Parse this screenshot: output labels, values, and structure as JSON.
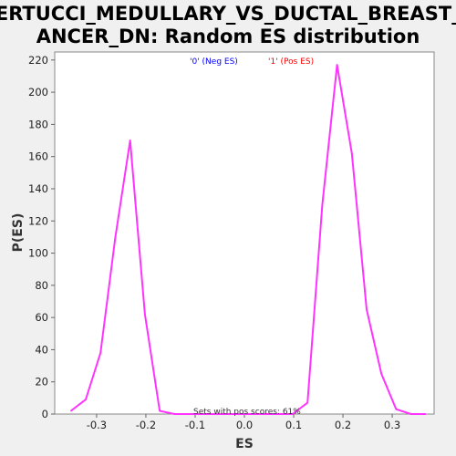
{
  "chart_data": {
    "type": "line",
    "title_lines": [
      "BERTUCCI_MEDULLARY_VS_DUCTAL_BREAST_C",
      "ANCER_DN: Random ES distribution"
    ],
    "xlabel": "ES",
    "ylabel": "P(ES)",
    "xlim": [
      -0.385,
      0.385
    ],
    "ylim": [
      0,
      225
    ],
    "x_ticks": [
      -0.3,
      -0.2,
      -0.1,
      0.0,
      0.1,
      0.2,
      0.3
    ],
    "x_tick_labels": [
      "-0.3",
      "-0.2",
      "-0.1",
      "0.0",
      "0.1",
      "0.2",
      "0.3"
    ],
    "y_ticks": [
      0,
      20,
      40,
      60,
      80,
      100,
      120,
      140,
      160,
      180,
      200,
      220
    ],
    "y_tick_labels": [
      "0",
      "20",
      "40",
      "60",
      "80",
      "100",
      "120",
      "140",
      "160",
      "180",
      "200",
      "220"
    ],
    "grid": false,
    "legend": [
      {
        "label": "'0' (Neg ES)",
        "color": "#0000ff"
      },
      {
        "label": "'1' (Pos ES)",
        "color": "#ff0000"
      }
    ],
    "annotation": "Sets with pos scores: 61%",
    "series": [
      {
        "color": "#ff33ff",
        "x": [
          -0.352,
          -0.302,
          -0.272,
          -0.242,
          -0.212,
          -0.182,
          -0.152,
          -0.122,
          -0.092,
          -0.062,
          -0.032,
          -0.002,
          0.028,
          0.058,
          0.088,
          0.118,
          0.148,
          0.178,
          0.208,
          0.238,
          0.268,
          0.298,
          0.328,
          0.358
        ],
        "y": [
          2,
          9,
          38,
          110,
          170,
          62,
          2,
          0,
          0,
          0,
          0,
          0,
          0,
          0,
          0,
          0,
          7,
          130,
          217,
          162,
          65,
          25,
          3,
          0
        ],
        "x_fixed": [
          -0.352,
          -0.322,
          -0.292,
          -0.262,
          -0.232,
          -0.202,
          -0.172,
          -0.142,
          -0.112,
          -0.082,
          -0.052,
          -0.022,
          0.008,
          0.038,
          0.068,
          0.098,
          0.128,
          0.158,
          0.188,
          0.218,
          0.248,
          0.278,
          0.308,
          0.338,
          0.368
        ],
        "y_fixed": [
          2,
          9,
          38,
          110,
          170,
          62,
          2,
          0,
          0,
          0,
          0,
          0,
          0,
          0,
          0,
          0,
          7,
          130,
          217,
          162,
          65,
          25,
          3,
          0,
          0
        ]
      }
    ]
  }
}
